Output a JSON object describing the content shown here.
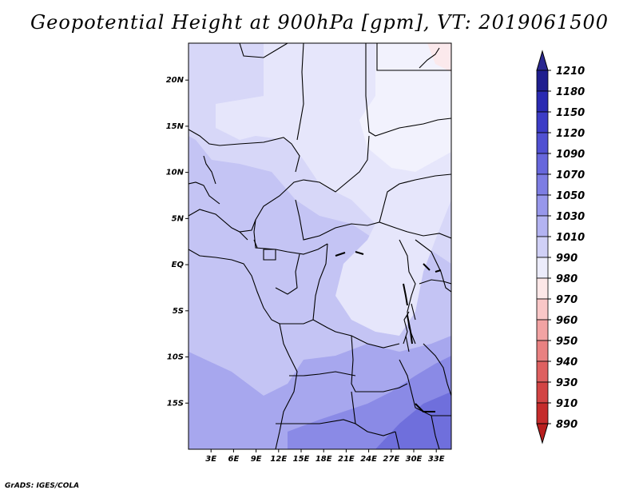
{
  "title": "Geopotential Height at 900hPa [gpm], VT: 2019061500",
  "footer": "GrADS: IGES/COLA",
  "map": {
    "lon_range": [
      0,
      35
    ],
    "lat_range": [
      -20,
      24
    ],
    "x_ticks": [
      {
        "value": 3,
        "label": "3E"
      },
      {
        "value": 6,
        "label": "6E"
      },
      {
        "value": 9,
        "label": "9E"
      },
      {
        "value": 12,
        "label": "12E"
      },
      {
        "value": 15,
        "label": "15E"
      },
      {
        "value": 18,
        "label": "18E"
      },
      {
        "value": 21,
        "label": "21E"
      },
      {
        "value": 24,
        "label": "24E"
      },
      {
        "value": 27,
        "label": "27E"
      },
      {
        "value": 30,
        "label": "30E"
      },
      {
        "value": 33,
        "label": "33E"
      }
    ],
    "y_ticks": [
      {
        "value": 20,
        "label": "20N"
      },
      {
        "value": 15,
        "label": "15N"
      },
      {
        "value": 10,
        "label": "10N"
      },
      {
        "value": 5,
        "label": "5N"
      },
      {
        "value": 0,
        "label": "EQ"
      },
      {
        "value": -5,
        "label": "5S"
      },
      {
        "value": -10,
        "label": "10S"
      },
      {
        "value": -15,
        "label": "15S"
      }
    ]
  },
  "colorbar": {
    "levels": [
      "1210",
      "1180",
      "1150",
      "1120",
      "1090",
      "1070",
      "1050",
      "1030",
      "1010",
      "990",
      "980",
      "970",
      "960",
      "950",
      "940",
      "930",
      "910",
      "890"
    ],
    "colors": [
      "#1f1e8f",
      "#2a2ab2",
      "#3c3cc6",
      "#5050d2",
      "#6767dc",
      "#7d7de3",
      "#9797eb",
      "#b3b3f1",
      "#d0d0f6",
      "#ececfb",
      "#fde8e8",
      "#f9c7c7",
      "#f2a3a3",
      "#e98181",
      "#de6060",
      "#d24444",
      "#c52c2c",
      "#b21a1a"
    ],
    "top_cap": "#2a2890",
    "bottom_cap": "#b81e1e"
  }
}
